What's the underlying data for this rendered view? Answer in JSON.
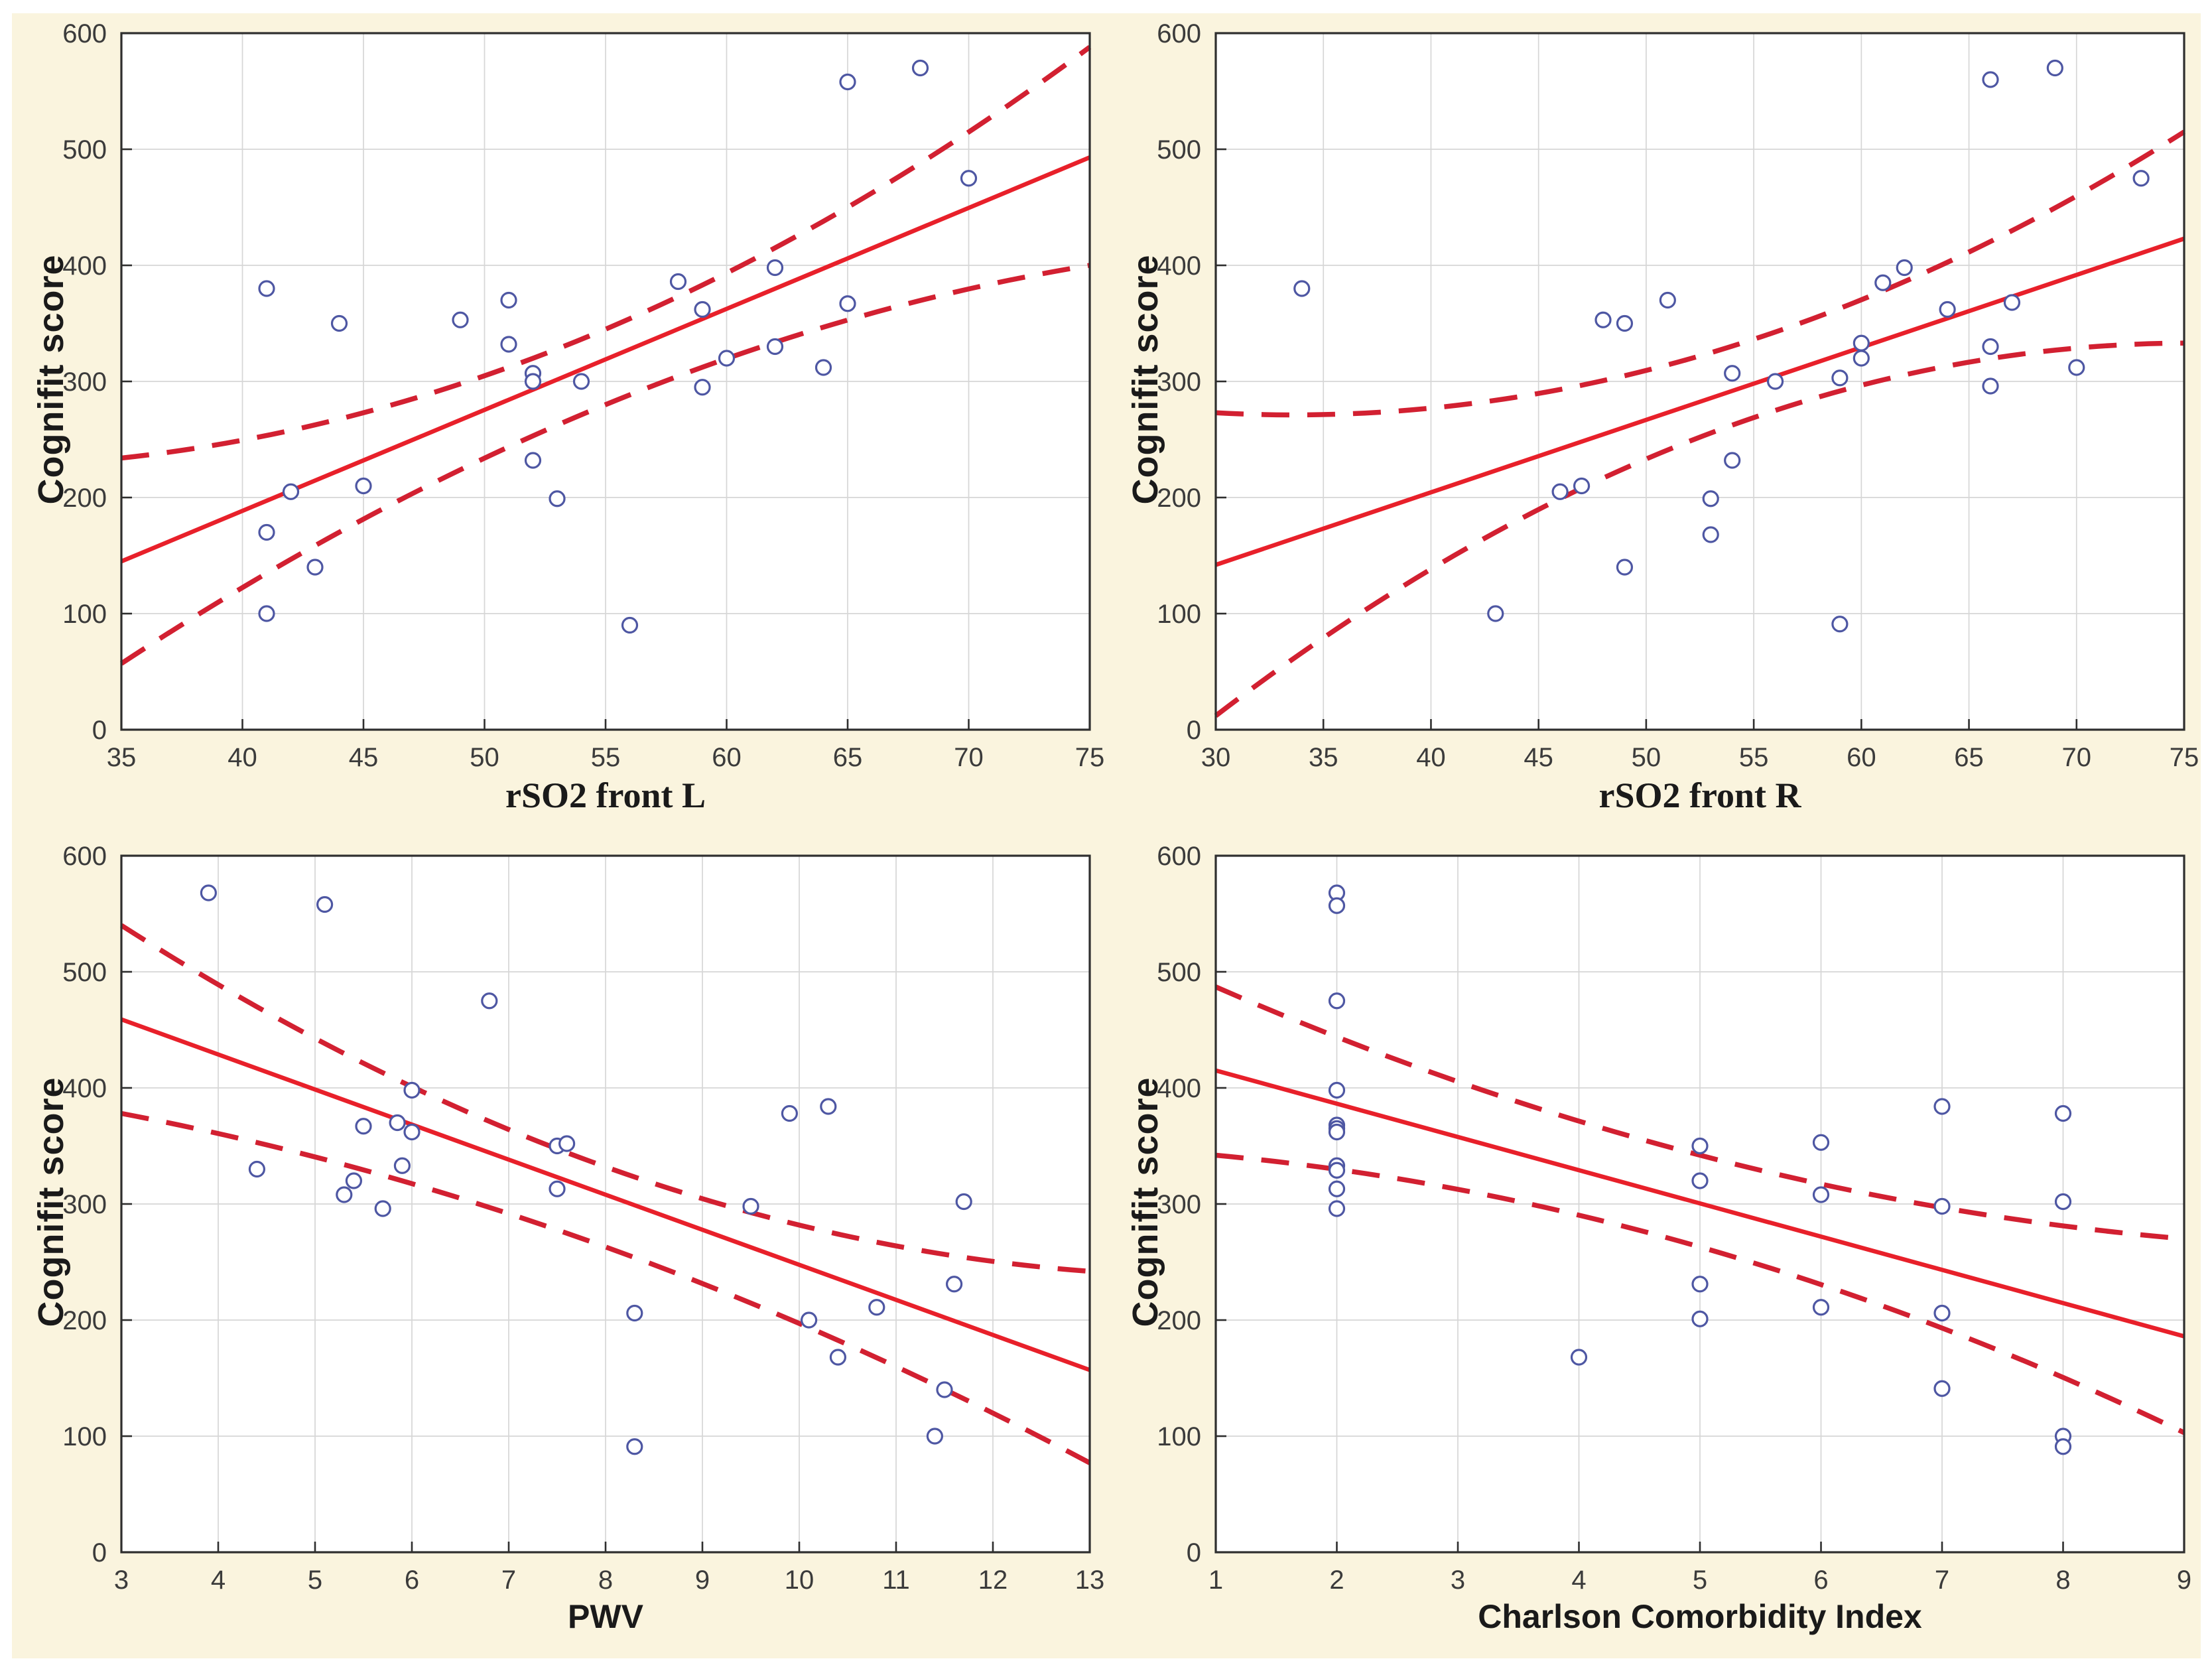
{
  "figure": {
    "background_color": "#faf4de",
    "plot_background": "#ffffff",
    "grid_color": "#d6d6d6",
    "frame_color": "#2e2e2e",
    "tick_label_color": "#3b3b3b",
    "point_color": "#4e57a3",
    "regression_line_color": "#e8202a",
    "confidence_band_color": "#d22031",
    "marker": "open-circle",
    "band_style": "dashed"
  },
  "chart_data": [
    {
      "type": "scatter",
      "xlabel": "rSO2 front L",
      "ylabel": "Cognifit score",
      "xlim": [
        35,
        75
      ],
      "ylim": [
        0,
        600
      ],
      "xticks": [
        35,
        40,
        45,
        50,
        55,
        60,
        65,
        70,
        75
      ],
      "yticks": [
        0,
        100,
        200,
        300,
        400,
        500,
        600
      ],
      "grid": true,
      "legend": null,
      "points": [
        [
          41,
          380
        ],
        [
          44,
          350
        ],
        [
          41,
          170
        ],
        [
          41,
          100
        ],
        [
          43,
          140
        ],
        [
          42,
          205
        ],
        [
          45,
          210
        ],
        [
          49,
          353
        ],
        [
          51,
          370
        ],
        [
          51,
          332
        ],
        [
          52,
          307
        ],
        [
          52,
          300
        ],
        [
          52,
          232
        ],
        [
          53,
          199
        ],
        [
          54,
          300
        ],
        [
          56,
          90
        ],
        [
          58,
          386
        ],
        [
          59,
          362
        ],
        [
          59,
          295
        ],
        [
          60,
          320
        ],
        [
          62,
          398
        ],
        [
          62,
          330
        ],
        [
          64,
          312
        ],
        [
          65,
          558
        ],
        [
          65,
          367
        ],
        [
          68,
          570
        ],
        [
          70,
          475
        ]
      ],
      "regression": {
        "x": [
          35,
          75
        ],
        "y": [
          145,
          493
        ]
      },
      "ci_upper": {
        "x": [
          35,
          55,
          75
        ],
        "y": [
          234,
          345,
          588
        ]
      },
      "ci_lower": {
        "x": [
          35,
          55,
          75
        ],
        "y": [
          57,
          280,
          400
        ]
      }
    },
    {
      "type": "scatter",
      "xlabel": "rSO2 front R",
      "ylabel": "Cognifit score",
      "xlim": [
        30,
        75
      ],
      "ylim": [
        0,
        600
      ],
      "xticks": [
        30,
        35,
        40,
        45,
        50,
        55,
        60,
        65,
        70,
        75
      ],
      "yticks": [
        0,
        100,
        200,
        300,
        400,
        500,
        600
      ],
      "grid": true,
      "legend": null,
      "points": [
        [
          34,
          380
        ],
        [
          43,
          100
        ],
        [
          46,
          205
        ],
        [
          47,
          210
        ],
        [
          48,
          353
        ],
        [
          49,
          350
        ],
        [
          49,
          140
        ],
        [
          51,
          370
        ],
        [
          53,
          199
        ],
        [
          53,
          168
        ],
        [
          54,
          307
        ],
        [
          54,
          232
        ],
        [
          56,
          300
        ],
        [
          59,
          303
        ],
        [
          60,
          333
        ],
        [
          60,
          320
        ],
        [
          59,
          91
        ],
        [
          61,
          385
        ],
        [
          62,
          398
        ],
        [
          64,
          362
        ],
        [
          66,
          560
        ],
        [
          66,
          330
        ],
        [
          66,
          296
        ],
        [
          67,
          368
        ],
        [
          69,
          570
        ],
        [
          70,
          312
        ],
        [
          73,
          475
        ]
      ],
      "regression": {
        "x": [
          30,
          75
        ],
        "y": [
          142,
          423
        ]
      },
      "ci_upper": {
        "x": [
          30,
          52.5,
          75
        ],
        "y": [
          273,
          322,
          515
        ]
      },
      "ci_lower": {
        "x": [
          30,
          52.5,
          75
        ],
        "y": [
          12,
          252,
          333
        ]
      }
    },
    {
      "type": "scatter",
      "xlabel": "PWV",
      "ylabel": "Cognifit score",
      "xlim": [
        3,
        13
      ],
      "ylim": [
        0,
        600
      ],
      "xticks": [
        3,
        4,
        5,
        6,
        7,
        8,
        9,
        10,
        11,
        12,
        13
      ],
      "yticks": [
        0,
        100,
        200,
        300,
        400,
        500,
        600
      ],
      "grid": true,
      "legend": null,
      "points": [
        [
          3.9,
          568
        ],
        [
          5.1,
          558
        ],
        [
          4.4,
          330
        ],
        [
          5.3,
          308
        ],
        [
          5.4,
          320
        ],
        [
          5.5,
          367
        ],
        [
          5.7,
          296
        ],
        [
          5.85,
          370
        ],
        [
          5.9,
          333
        ],
        [
          6.0,
          398
        ],
        [
          6.0,
          362
        ],
        [
          6.8,
          475
        ],
        [
          7.5,
          350
        ],
        [
          7.6,
          352
        ],
        [
          7.5,
          313
        ],
        [
          8.3,
          206
        ],
        [
          8.3,
          91
        ],
        [
          9.5,
          298
        ],
        [
          9.9,
          378
        ],
        [
          10.1,
          200
        ],
        [
          10.3,
          384
        ],
        [
          10.4,
          168
        ],
        [
          10.8,
          211
        ],
        [
          11.4,
          100
        ],
        [
          11.5,
          140
        ],
        [
          11.6,
          231
        ],
        [
          11.7,
          302
        ]
      ],
      "regression": {
        "x": [
          3,
          13
        ],
        "y": [
          459,
          157
        ]
      },
      "ci_upper": {
        "x": [
          3,
          8,
          13
        ],
        "y": [
          540,
          332,
          242
        ]
      },
      "ci_lower": {
        "x": [
          3,
          8,
          13
        ],
        "y": [
          378,
          263,
          77
        ]
      }
    },
    {
      "type": "scatter",
      "xlabel": "Charlson Comorbidity Index",
      "ylabel": "Cognifit score",
      "xlim": [
        1,
        9
      ],
      "ylim": [
        0,
        600
      ],
      "xticks": [
        1,
        2,
        3,
        4,
        5,
        6,
        7,
        8,
        9
      ],
      "yticks": [
        0,
        100,
        200,
        300,
        400,
        500,
        600
      ],
      "grid": true,
      "legend": null,
      "points": [
        [
          2,
          568
        ],
        [
          2,
          557
        ],
        [
          2,
          475
        ],
        [
          2,
          398
        ],
        [
          2,
          368
        ],
        [
          2,
          365
        ],
        [
          2,
          362
        ],
        [
          2,
          333
        ],
        [
          2,
          329
        ],
        [
          2,
          313
        ],
        [
          2,
          296
        ],
        [
          4,
          168
        ],
        [
          5,
          350
        ],
        [
          5,
          320
        ],
        [
          5,
          231
        ],
        [
          5,
          201
        ],
        [
          6,
          353
        ],
        [
          6,
          308
        ],
        [
          6,
          211
        ],
        [
          7,
          384
        ],
        [
          7,
          298
        ],
        [
          7,
          206
        ],
        [
          7,
          141
        ],
        [
          8,
          378
        ],
        [
          8,
          302
        ],
        [
          8,
          100
        ],
        [
          8,
          91
        ]
      ],
      "regression": {
        "x": [
          1,
          9
        ],
        "y": [
          415,
          186
        ]
      },
      "ci_upper": {
        "x": [
          1,
          5,
          9
        ],
        "y": [
          487,
          342,
          270
        ]
      },
      "ci_lower": {
        "x": [
          1,
          5,
          9
        ],
        "y": [
          342,
          263,
          103
        ]
      }
    }
  ]
}
